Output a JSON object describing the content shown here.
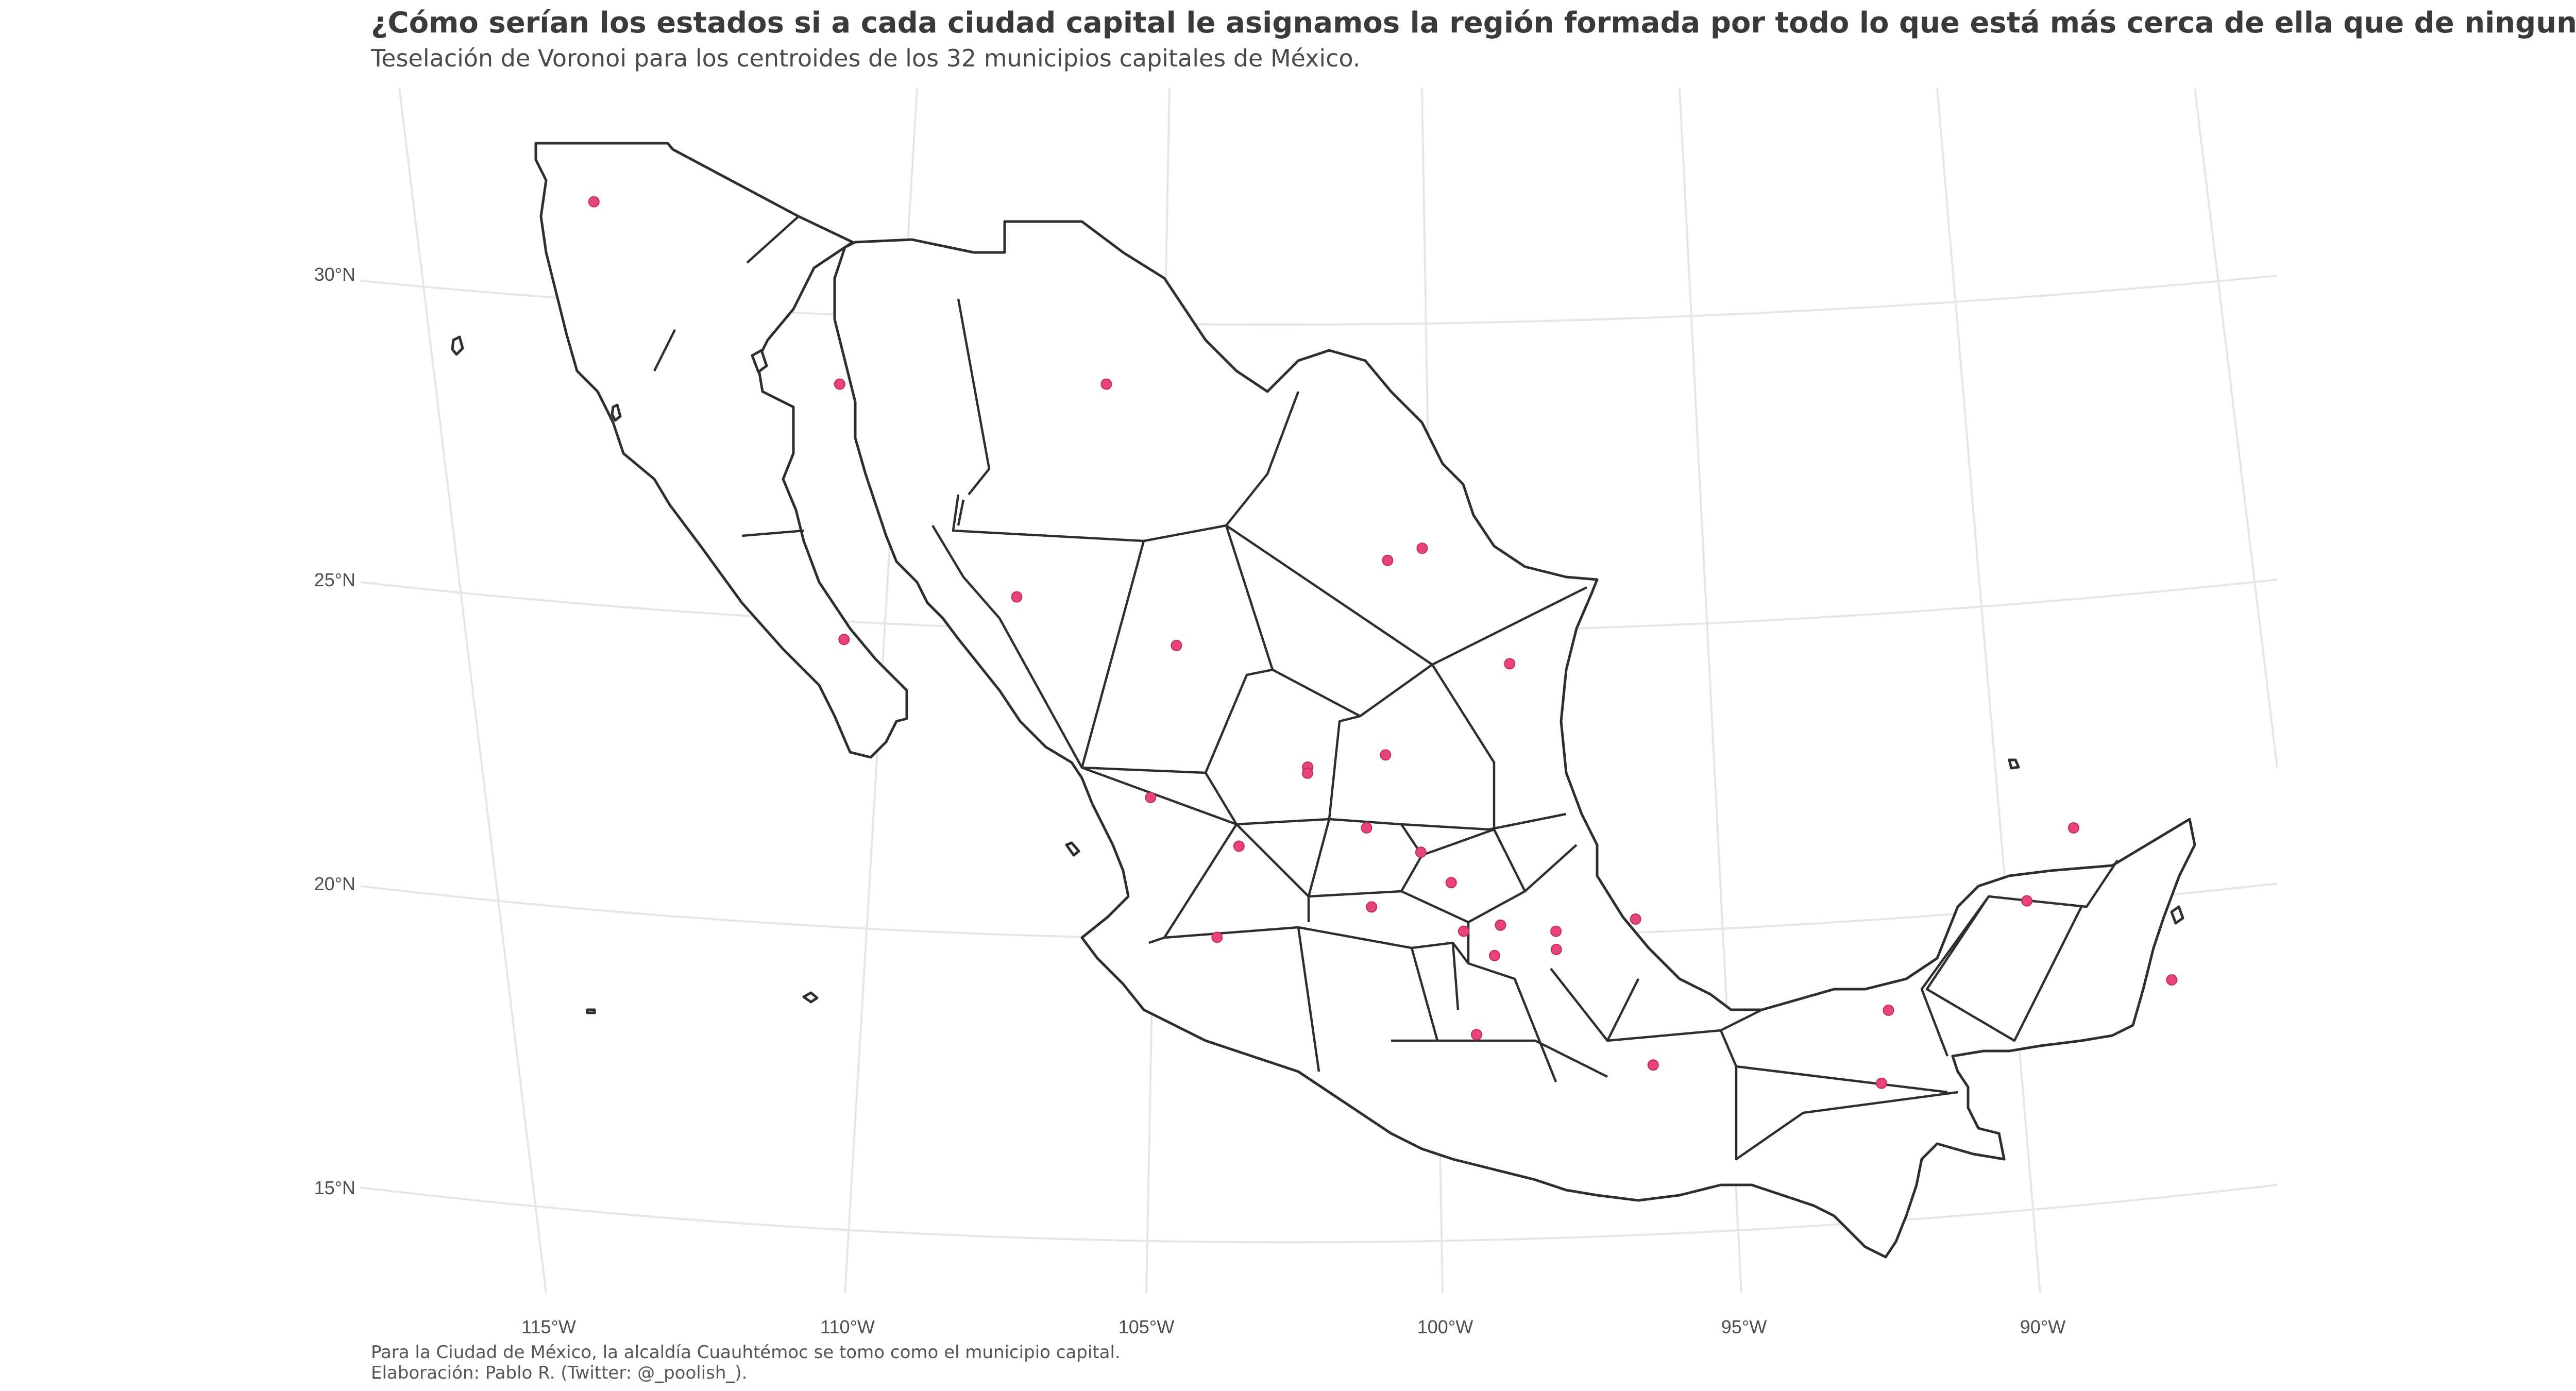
{
  "title": "¿Cómo serían los estados si a cada ciudad capital le asignamos la región formada por todo lo que está más cerca de ella que de ninguna otra?",
  "subtitle": "Teselación de Voronoi para los centroides de los 32 municipios capitales de México.",
  "caption": {
    "line1": "Para la Ciudad de México, la alcaldía Cuauhtémoc se tomo como el municipio capital.",
    "line2": "Elaboración: Pablo R. (Twitter: @_poolish_)."
  },
  "axes": {
    "lat_labels": [
      "30°N",
      "25°N",
      "20°N",
      "15°N"
    ],
    "lon_labels": [
      "115°W",
      "110°W",
      "105°W",
      "100°W",
      "95°W",
      "90°W"
    ]
  },
  "colors": {
    "capital_point": "#e8437a",
    "outline": "#2e2e2e",
    "graticule": "#e6e6e6"
  },
  "capital_points_lonlat": [
    [
      -115.9,
      31.3
    ],
    [
      -110.9,
      28.3
    ],
    [
      -106.1,
      28.3
    ],
    [
      -110.3,
      24.1
    ],
    [
      -107.4,
      24.8
    ],
    [
      -104.6,
      24.0
    ],
    [
      -100.4,
      25.6
    ],
    [
      -101.0,
      25.4
    ],
    [
      -98.9,
      23.7
    ],
    [
      -102.3,
      22.0
    ],
    [
      -101.0,
      22.2
    ],
    [
      -104.9,
      21.5
    ],
    [
      -102.3,
      21.9
    ],
    [
      -103.4,
      20.7
    ],
    [
      -100.4,
      20.6
    ],
    [
      -101.3,
      21.0
    ],
    [
      -99.9,
      20.1
    ],
    [
      -101.2,
      19.7
    ],
    [
      -99.7,
      19.3
    ],
    [
      -98.2,
      19.3
    ],
    [
      -99.1,
      19.4
    ],
    [
      -99.2,
      18.9
    ],
    [
      -98.2,
      19.0
    ],
    [
      -96.9,
      19.5
    ],
    [
      -103.7,
      19.2
    ],
    [
      -99.5,
      17.6
    ],
    [
      -96.7,
      17.1
    ],
    [
      -93.1,
      16.8
    ],
    [
      -92.9,
      18.0
    ],
    [
      -90.5,
      19.8
    ],
    [
      -89.6,
      21.0
    ],
    [
      -88.3,
      18.5
    ]
  ]
}
